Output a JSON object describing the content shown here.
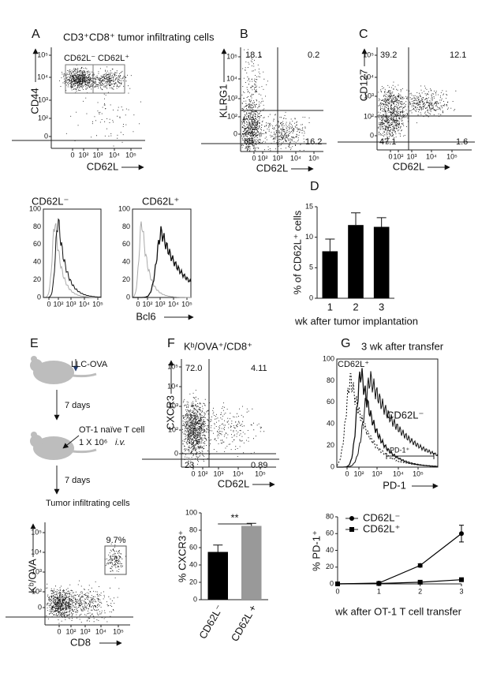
{
  "panels": {
    "A": {
      "letter": "A",
      "title": "CD3⁺CD8⁺ tumor infiltrating cells",
      "y_label": "CD44",
      "x_label": "CD62L",
      "yticks": [
        "10⁵",
        "10⁴",
        "10³",
        "10²",
        "0"
      ],
      "xticks": [
        "0",
        "10²",
        "10³",
        "10⁴",
        "10⁵"
      ],
      "gates": [
        "CD62L⁻",
        "CD62L⁺"
      ],
      "histograms": [
        {
          "title": "CD62L⁻",
          "yticks": [
            100,
            80,
            60,
            40,
            20,
            0
          ],
          "xticks": [
            "0",
            "10²",
            "10³",
            "10⁴",
            "10⁵"
          ]
        },
        {
          "title": "CD62L⁺",
          "yticks": [
            100,
            80,
            60,
            40,
            20,
            0
          ],
          "xticks": [
            "0",
            "10²",
            "10³",
            "10⁴",
            "10⁵"
          ]
        }
      ],
      "histogram_x_label": "Bcl6"
    },
    "B": {
      "letter": "B",
      "y_label": "KLRG1",
      "x_label": "CD62L",
      "yticks": [
        "10⁵",
        "10⁴",
        "10³",
        "10²",
        "0"
      ],
      "xticks": [
        "0",
        "10²",
        "10³",
        "10⁴",
        "10⁵"
      ],
      "quadrants": [
        "18.1",
        "0.2",
        "65",
        "16.2"
      ]
    },
    "C": {
      "letter": "C",
      "y_label": "CD127",
      "x_label": "CD62L",
      "yticks": [
        "10⁵",
        "10⁴",
        "10³",
        "10²",
        "0"
      ],
      "xticks": [
        "0",
        "10²",
        "10³",
        "10⁴",
        "10⁵"
      ],
      "quadrants": [
        "39.2",
        "12.1",
        "47.1",
        "1.6"
      ]
    },
    "D": {
      "letter": "D"
    },
    "E": {
      "letter": "E",
      "tumor": "LLC-OVA",
      "wait_1": "7 days",
      "transfer": "OT-1 naïve T cell",
      "dose": "1 X 10⁶",
      "route": "i.v.",
      "wait_2": "7 days",
      "harvest": "Tumor infiltrating cells",
      "y_label": "Kᵇ/OVA",
      "x_label": "CD8",
      "yticks": [
        "10⁵",
        "10⁴",
        "10³",
        "10²",
        "0"
      ],
      "xticks": [
        "0",
        "10²",
        "10³",
        "10⁴",
        "10⁵"
      ],
      "gate": "9.7%"
    },
    "F": {
      "letter": "F",
      "title": "Kᵇ/OVA⁺/CD8⁺",
      "y_label": "CXCR3",
      "x_label": "CD62L",
      "yticks": [
        "10⁵",
        "10⁴",
        "10³",
        "10²",
        "0"
      ],
      "xticks": [
        "0",
        "10²",
        "10³",
        "10⁴",
        "10⁵"
      ],
      "quadrants": [
        "72.0",
        "4.11",
        "23",
        "0.89"
      ]
    },
    "G": {
      "letter": "G",
      "title": "3 wk after transfer",
      "yticks": [
        100,
        80,
        60,
        40,
        20,
        0
      ],
      "xticks": [
        "0",
        "10²",
        "10³",
        "10⁴",
        "10⁵"
      ],
      "labels": [
        "CD62L⁺",
        "CD62L⁻"
      ],
      "gate": "PD-1⁺",
      "x_label": "PD-1"
    }
  },
  "chart_data": [
    {
      "type": "bar",
      "categories": [
        "1",
        "2",
        "3"
      ],
      "values": [
        7.7,
        12,
        11.7
      ],
      "errors": [
        2,
        2,
        1.5
      ],
      "color": "#000000",
      "ylim": [
        0,
        15
      ],
      "yticks": [
        0,
        5,
        10,
        15
      ],
      "y_label": "% of CD62L⁺ cells",
      "x_label": "wk after tumor implantation"
    },
    {
      "type": "bar",
      "categories": [
        "CD62L⁻",
        "CD62L +"
      ],
      "values": [
        55,
        85
      ],
      "errors": [
        8,
        3
      ],
      "colors": [
        "#000000",
        "#999999"
      ],
      "ylim": [
        0,
        100
      ],
      "yticks": [
        0,
        20,
        40,
        60,
        80,
        100
      ],
      "y_label": "% CXCR3⁺",
      "annotation": "**"
    },
    {
      "type": "line",
      "x": [
        0,
        1,
        2,
        3
      ],
      "xlim": [
        0,
        3
      ],
      "xticks": [
        0,
        1,
        2,
        3
      ],
      "ylim": [
        0,
        80
      ],
      "yticks": [
        0,
        20,
        40,
        60,
        80
      ],
      "series": [
        {
          "name": "CD62L⁻",
          "color": "#000000",
          "marker": "circle",
          "values": [
            0,
            1,
            22,
            60
          ],
          "errors": [
            0.5,
            0.5,
            2,
            10
          ]
        },
        {
          "name": "CD62L⁺",
          "color": "#000000",
          "marker": "square",
          "values": [
            0,
            0.5,
            2,
            5
          ],
          "errors": [
            0.3,
            0.3,
            1,
            2
          ]
        }
      ],
      "y_label": "% PD-1⁺",
      "x_label": "wk after OT-1 T cell transfer",
      "legend": "upper left"
    }
  ]
}
